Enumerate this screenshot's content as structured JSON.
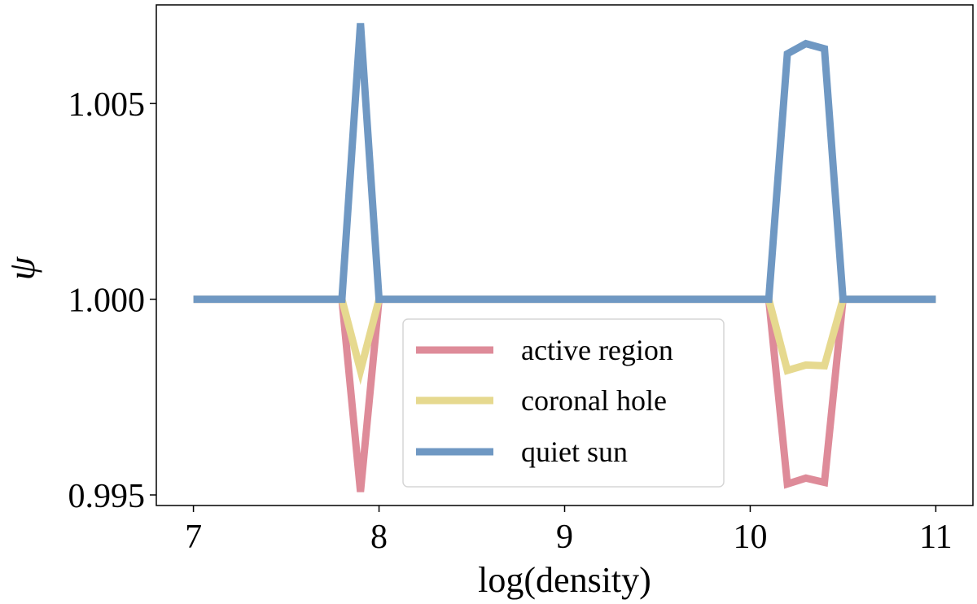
{
  "chart_data": {
    "type": "line",
    "title": "",
    "xlabel": "log(density)",
    "ylabel": "ψ",
    "xlim": [
      6.8,
      11.2
    ],
    "ylim": [
      0.99473,
      1.00752
    ],
    "xticks": [
      7,
      8,
      9,
      10,
      11
    ],
    "xtick_labels": [
      "7",
      "8",
      "9",
      "10",
      "11"
    ],
    "yticks": [
      0.995,
      1.0,
      1.005
    ],
    "ytick_labels": [
      "0.995",
      "1.000",
      "1.005"
    ],
    "grid": false,
    "legend_position": "lower-center",
    "x": [
      7.0,
      7.1,
      7.2,
      7.3,
      7.4,
      7.5,
      7.6,
      7.7,
      7.8,
      7.9,
      8.0,
      8.1,
      8.2,
      8.3,
      8.4,
      8.5,
      8.6,
      8.7,
      8.8,
      8.9,
      9.0,
      9.1,
      9.2,
      9.3,
      9.4,
      9.5,
      9.6,
      9.7,
      9.8,
      9.9,
      10.0,
      10.1,
      10.2,
      10.3,
      10.4,
      10.5,
      10.6,
      10.7,
      10.8,
      10.9,
      11.0
    ],
    "series": [
      {
        "name": "active region",
        "color": "#de8b99",
        "values": [
          1.0,
          1.0,
          1.0,
          1.0,
          1.0,
          1.0,
          1.0,
          1.0,
          1.0,
          0.99508,
          1.0,
          1.0,
          1.0,
          1.0,
          1.0,
          1.0,
          1.0,
          1.0,
          1.0,
          1.0,
          1.0,
          1.0,
          1.0,
          1.0,
          1.0,
          1.0,
          1.0,
          1.0,
          1.0,
          1.0,
          1.0,
          1.0,
          0.99528,
          0.99543,
          0.99532,
          1.0,
          1.0,
          1.0,
          1.0,
          1.0,
          1.0
        ]
      },
      {
        "name": "coronal hole",
        "color": "#e6d98f",
        "values": [
          1.0,
          1.0,
          1.0,
          1.0,
          1.0,
          1.0,
          1.0,
          1.0,
          1.0,
          0.99818,
          1.0,
          1.0,
          1.0,
          1.0,
          1.0,
          1.0,
          1.0,
          1.0,
          1.0,
          1.0,
          1.0,
          1.0,
          1.0,
          1.0,
          1.0,
          1.0,
          1.0,
          1.0,
          1.0,
          1.0,
          1.0,
          1.0,
          0.99818,
          0.99832,
          0.9983,
          1.0,
          1.0,
          1.0,
          1.0,
          1.0,
          1.0
        ]
      },
      {
        "name": "quiet sun",
        "color": "#6f98c3",
        "values": [
          1.0,
          1.0,
          1.0,
          1.0,
          1.0,
          1.0,
          1.0,
          1.0,
          1.0,
          1.00705,
          1.0,
          1.0,
          1.0,
          1.0,
          1.0,
          1.0,
          1.0,
          1.0,
          1.0,
          1.0,
          1.0,
          1.0,
          1.0,
          1.0,
          1.0,
          1.0,
          1.0,
          1.0,
          1.0,
          1.0,
          1.0,
          1.0,
          1.00627,
          1.00653,
          1.0064,
          1.0,
          1.0,
          1.0,
          1.0,
          1.0,
          1.0
        ]
      }
    ]
  }
}
